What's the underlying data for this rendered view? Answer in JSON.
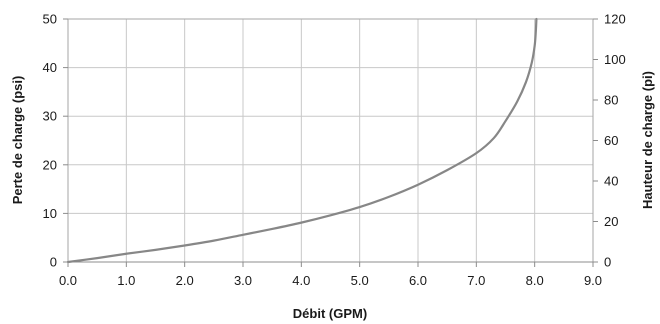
{
  "chart_data": {
    "type": "line",
    "xlabel": "Débit (GPM)",
    "ylabel": "Perte de charge (psi)",
    "y2label": "Hauteur de charge (pi)",
    "xlim": [
      0,
      9
    ],
    "ylim": [
      0,
      50
    ],
    "y2lim": [
      0,
      120
    ],
    "x_ticks": [
      "0.0",
      "1.0",
      "2.0",
      "3.0",
      "4.0",
      "5.0",
      "6.0",
      "7.0",
      "8.0",
      "9.0"
    ],
    "y_ticks": [
      "0",
      "10",
      "20",
      "30",
      "40",
      "50"
    ],
    "y2_ticks": [
      "0",
      "20",
      "40",
      "60",
      "80",
      "100",
      "120"
    ],
    "grid": true,
    "colors": {
      "line": "#878787",
      "grid": "#c8c8c8"
    },
    "series": [
      {
        "x": [
          0.0,
          0.5,
          1.0,
          1.5,
          2.0,
          2.5,
          3.0,
          3.5,
          4.0,
          4.5,
          5.0,
          5.5,
          6.0,
          6.5,
          7.0,
          7.3,
          7.5,
          7.7,
          7.85,
          7.95,
          8.0,
          8.02,
          8.03
        ],
        "y": [
          0.0,
          0.8,
          1.7,
          2.5,
          3.4,
          4.4,
          5.6,
          6.8,
          8.1,
          9.6,
          11.3,
          13.4,
          15.9,
          18.9,
          22.4,
          25.5,
          29.0,
          33.0,
          37.0,
          41.0,
          44.5,
          47.5,
          50.0
        ]
      }
    ]
  }
}
